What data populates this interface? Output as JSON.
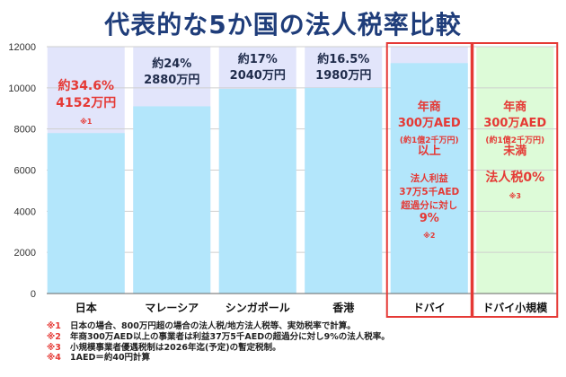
{
  "title": "代表的な5か国の法人税率比較",
  "colors": {
    "background_band": "#e2e5fb",
    "bar": "#b3e6fb",
    "highlight_bg": "#ddfbd8",
    "red": "#e53935",
    "text_dark": "#1f2b4a",
    "grid": "#999999"
  },
  "chart_data": {
    "type": "bar",
    "categories": [
      "日本",
      "マレーシア",
      "シンガポール",
      "香港",
      "ドバイ",
      "ドバイ小規模"
    ],
    "values": [
      7800,
      9100,
      9950,
      10000,
      11200,
      null
    ],
    "ylim": [
      0,
      12000
    ],
    "yticks": [
      "0",
      "2000",
      "4000",
      "6000",
      "8000",
      "10000",
      "12000"
    ],
    "grid": true,
    "annotations": [
      {
        "category": "日本",
        "color": "red",
        "lines": [
          {
            "text": "約34.6%",
            "size": "big"
          },
          {
            "text": "4152万円",
            "size": "big"
          },
          {
            "text": "※1",
            "size": "tiny"
          }
        ]
      },
      {
        "category": "マレーシア",
        "color": "dark",
        "lines": [
          {
            "text": "約24%",
            "size": "mid"
          },
          {
            "text": "2880万円",
            "size": "mid"
          }
        ]
      },
      {
        "category": "シンガポール",
        "color": "dark",
        "lines": [
          {
            "text": "約17%",
            "size": "mid"
          },
          {
            "text": "2040万円",
            "size": "mid"
          }
        ]
      },
      {
        "category": "香港",
        "color": "dark",
        "lines": [
          {
            "text": "約16.5%",
            "size": "mid"
          },
          {
            "text": "1980万円",
            "size": "mid"
          }
        ]
      },
      {
        "category": "ドバイ",
        "color": "red",
        "lines": [
          {
            "text": "年商",
            "size": "mid"
          },
          {
            "text": "300万AED",
            "size": "mid"
          },
          {
            "text": "(約1億2千万円)",
            "size": "small"
          },
          {
            "text": "以上",
            "size": "mid"
          },
          {
            "text": "",
            "size": "gap"
          },
          {
            "text": "法人利益",
            "size": "small2"
          },
          {
            "text": "37万5千AED",
            "size": "small2"
          },
          {
            "text": "超過分に対し",
            "size": "small2"
          },
          {
            "text": "9%",
            "size": "mid"
          },
          {
            "text": "※2",
            "size": "tiny"
          }
        ]
      },
      {
        "category": "ドバイ小規模",
        "color": "red",
        "lines": [
          {
            "text": "年商",
            "size": "mid"
          },
          {
            "text": "300万AED",
            "size": "mid"
          },
          {
            "text": "(約1億2千万円)",
            "size": "small"
          },
          {
            "text": "未満",
            "size": "mid"
          },
          {
            "text": "",
            "size": "gap"
          },
          {
            "text": "法人税0%",
            "size": "big"
          },
          {
            "text": "※3",
            "size": "tiny"
          }
        ]
      }
    ]
  },
  "footnotes": [
    {
      "mark": "※1",
      "text": "日本の場合、800万円超の場合の法人税/地方法人税等、実効税率で計算。"
    },
    {
      "mark": "※2",
      "text": "年商300万AED以上の事業者は利益37万5千AEDの超過分に対し9%の法人税率。"
    },
    {
      "mark": "※3",
      "text": "小規模事業者優遇税制は2026年迄(予定)の暫定税制。"
    },
    {
      "mark": "※4",
      "text": "1AED＝約40円計算"
    }
  ]
}
